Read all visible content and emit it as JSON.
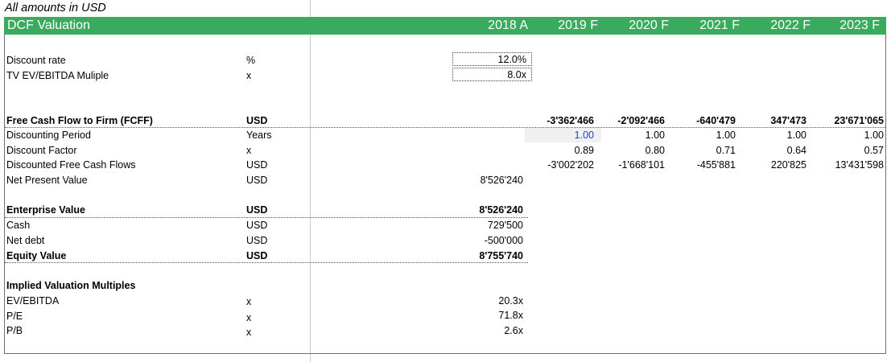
{
  "note": "All amounts in USD",
  "header": {
    "title": "DCF Valuation",
    "years": [
      "2018 A",
      "2019 F",
      "2020 F",
      "2021 F",
      "2022 F",
      "2023 F"
    ]
  },
  "inputs": {
    "discount_rate": {
      "label": "Discount rate",
      "unit": "%",
      "value": "12.0%"
    },
    "tv_multiple": {
      "label": "TV EV/EBITDA Muliple",
      "unit": "x",
      "value": "8.0x"
    }
  },
  "fcff": {
    "label": "Free Cash Flow to Firm (FCFF)",
    "unit": "USD",
    "values": [
      "-3'362'466",
      "-2'092'466",
      "-640'479",
      "347'473",
      "23'671'065"
    ]
  },
  "discounting_period": {
    "label": "Discounting Period",
    "unit": "Years",
    "values": [
      "1.00",
      "1.00",
      "1.00",
      "1.00",
      "1.00"
    ]
  },
  "discount_factor": {
    "label": "Discount Factor",
    "unit": "x",
    "values": [
      "0.89",
      "0.80",
      "0.71",
      "0.64",
      "0.57"
    ]
  },
  "discounted_fcf": {
    "label": "Discounted Free Cash Flows",
    "unit": "USD",
    "values": [
      "-3'002'202",
      "-1'668'101",
      "-455'881",
      "220'825",
      "13'431'598"
    ]
  },
  "npv": {
    "label": "Net Present Value",
    "unit": "USD",
    "value": "8'526'240"
  },
  "enterprise_value": {
    "label": "Enterprise Value",
    "unit": "USD",
    "value": "8'526'240"
  },
  "cash": {
    "label": "Cash",
    "unit": "USD",
    "value": "729'500"
  },
  "net_debt": {
    "label": "Net debt",
    "unit": "USD",
    "value": "-500'000"
  },
  "equity_value": {
    "label": "Equity Value",
    "unit": "USD",
    "value": "8'755'740"
  },
  "multiples": {
    "title": "Implied Valuation Multiples",
    "ev_ebitda": {
      "label": "EV/EBITDA",
      "unit": "x",
      "value": "20.3x"
    },
    "pe": {
      "label": "P/E",
      "unit": "x",
      "value": "71.8x"
    },
    "pb": {
      "label": "P/B",
      "unit": "x",
      "value": "2.6x"
    }
  },
  "colors": {
    "header_green": "#3aaa5f",
    "input_blue": "#1f3fd6"
  }
}
